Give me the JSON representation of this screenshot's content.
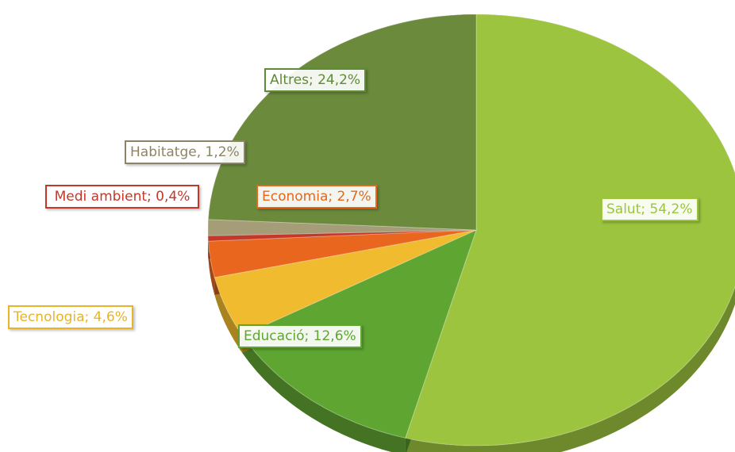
{
  "chart_data": {
    "type": "pie",
    "values": [
      54.2,
      12.6,
      4.6,
      2.7,
      0.4,
      1.2,
      24.2
    ],
    "value_labels": [
      "Salut; 54,2%",
      "Educació; 12,6%",
      "Tecnologia; 4,6%",
      "Economia; 2,7%",
      "Medi ambient; 0,4%",
      "Habitatge, 1,2%",
      "Altres; 24,2%"
    ],
    "colors": [
      "#9cc43e",
      "#5fa532",
      "#f0bb2e",
      "#e8661d",
      "#c4382a",
      "#a59c78",
      "#6b8a3c"
    ],
    "label_colors": [
      "#9cc43e",
      "#5fa532",
      "#e9b42a",
      "#e8661d",
      "#c4382a",
      "#8c8466",
      "#5f8a36"
    ]
  }
}
